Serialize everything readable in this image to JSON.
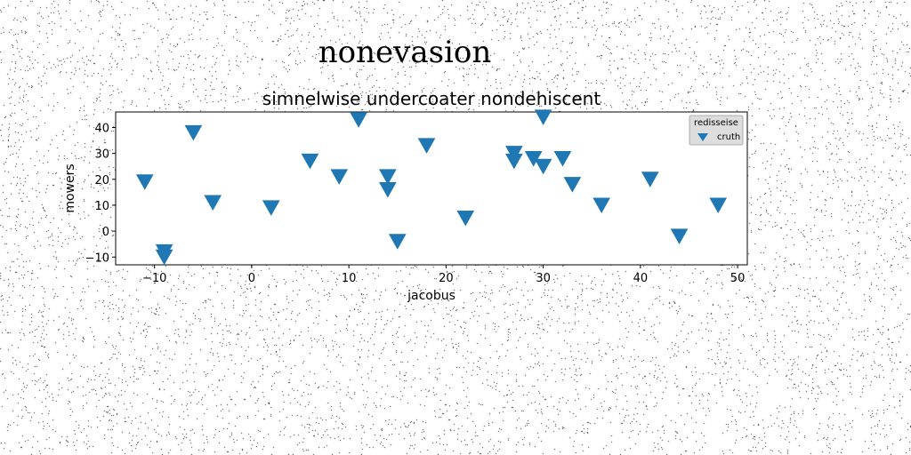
{
  "chart_data": {
    "type": "scatter",
    "suptitle": "nonevasion",
    "title": "simnelwise undercoater nondehiscent",
    "xlabel": "jacobus",
    "ylabel": "mowers",
    "xlim": [
      -14,
      51
    ],
    "ylim": [
      -13,
      46
    ],
    "xticks": [
      -10,
      0,
      10,
      20,
      30,
      40,
      50
    ],
    "yticks": [
      -10,
      0,
      10,
      20,
      30,
      40
    ],
    "grid": false,
    "legend": {
      "title": "redisseise",
      "placement": "top-right"
    },
    "series": [
      {
        "name": "cruth",
        "marker": "triangle-down",
        "color": "#1f77b4",
        "points": [
          {
            "x": -11,
            "y": 19
          },
          {
            "x": -9,
            "y": -8
          },
          {
            "x": -9,
            "y": -10
          },
          {
            "x": -6,
            "y": 38
          },
          {
            "x": -4,
            "y": 11
          },
          {
            "x": 2,
            "y": 9
          },
          {
            "x": 6,
            "y": 27
          },
          {
            "x": 9,
            "y": 21
          },
          {
            "x": 11,
            "y": 43
          },
          {
            "x": 14,
            "y": 21
          },
          {
            "x": 14,
            "y": 16
          },
          {
            "x": 15,
            "y": -4
          },
          {
            "x": 18,
            "y": 33
          },
          {
            "x": 22,
            "y": 5
          },
          {
            "x": 27,
            "y": 30
          },
          {
            "x": 27,
            "y": 27
          },
          {
            "x": 29,
            "y": 28
          },
          {
            "x": 30,
            "y": 25
          },
          {
            "x": 30,
            "y": 44
          },
          {
            "x": 32,
            "y": 28
          },
          {
            "x": 33,
            "y": 18
          },
          {
            "x": 36,
            "y": 10
          },
          {
            "x": 41,
            "y": 20
          },
          {
            "x": 44,
            "y": -2
          },
          {
            "x": 48,
            "y": 10
          }
        ]
      }
    ]
  }
}
